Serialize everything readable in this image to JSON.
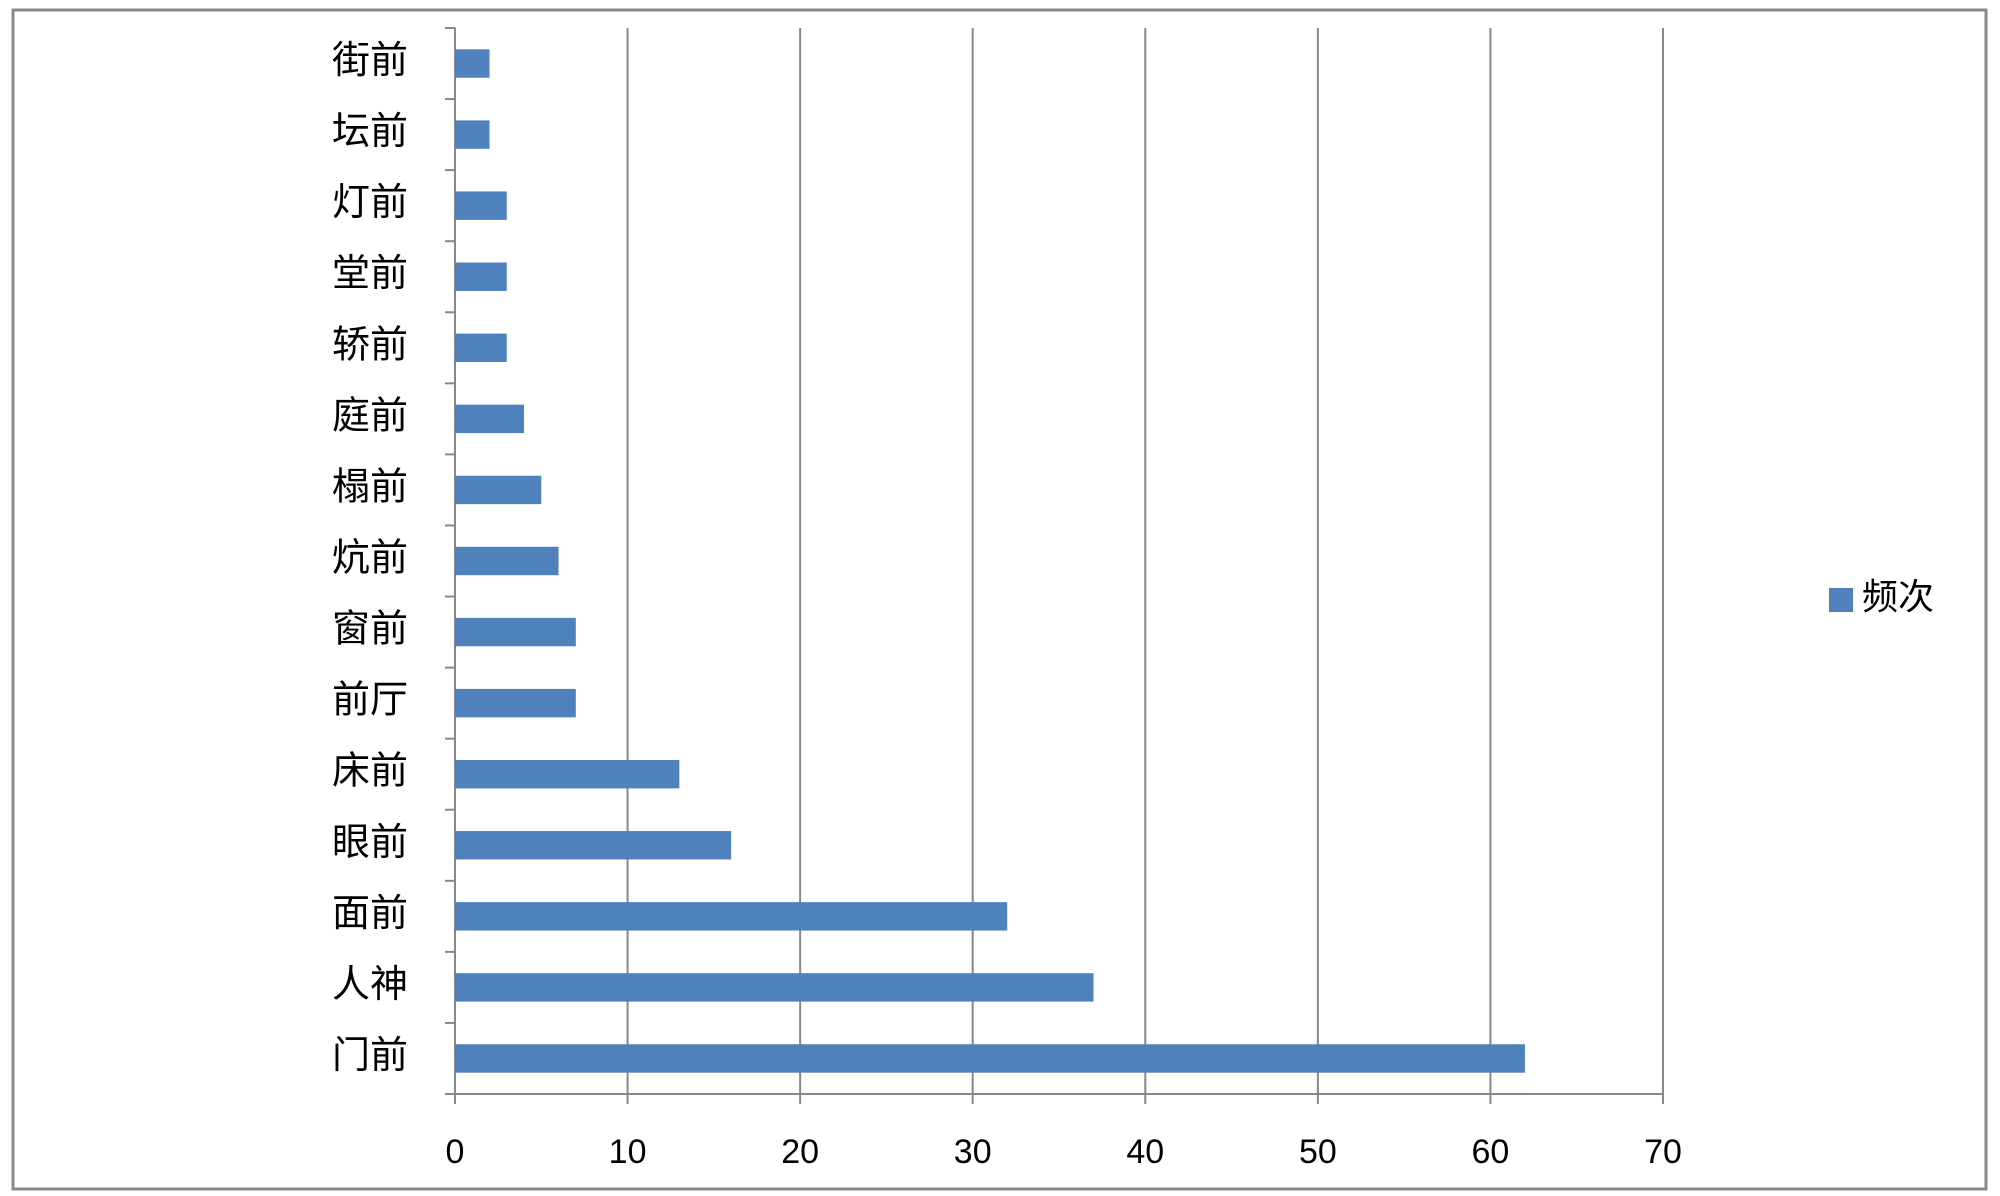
{
  "chart_data": {
    "type": "bar",
    "orientation": "horizontal",
    "categories": [
      "街前",
      "坛前",
      "灯前",
      "堂前",
      "轿前",
      "庭前",
      "榻前",
      "炕前",
      "窗前",
      "前厅",
      "床前",
      "眼前",
      "面前",
      "人神",
      "门前"
    ],
    "series": [
      {
        "name": "频次",
        "color": "#4f81bd",
        "values": [
          2,
          2,
          3,
          3,
          3,
          4,
          5,
          6,
          7,
          7,
          13,
          16,
          32,
          37,
          62
        ]
      }
    ],
    "xlim": [
      0,
      70
    ],
    "xticks": [
      0,
      10,
      20,
      30,
      40,
      50,
      60,
      70
    ],
    "grid": true,
    "legend": "right"
  }
}
